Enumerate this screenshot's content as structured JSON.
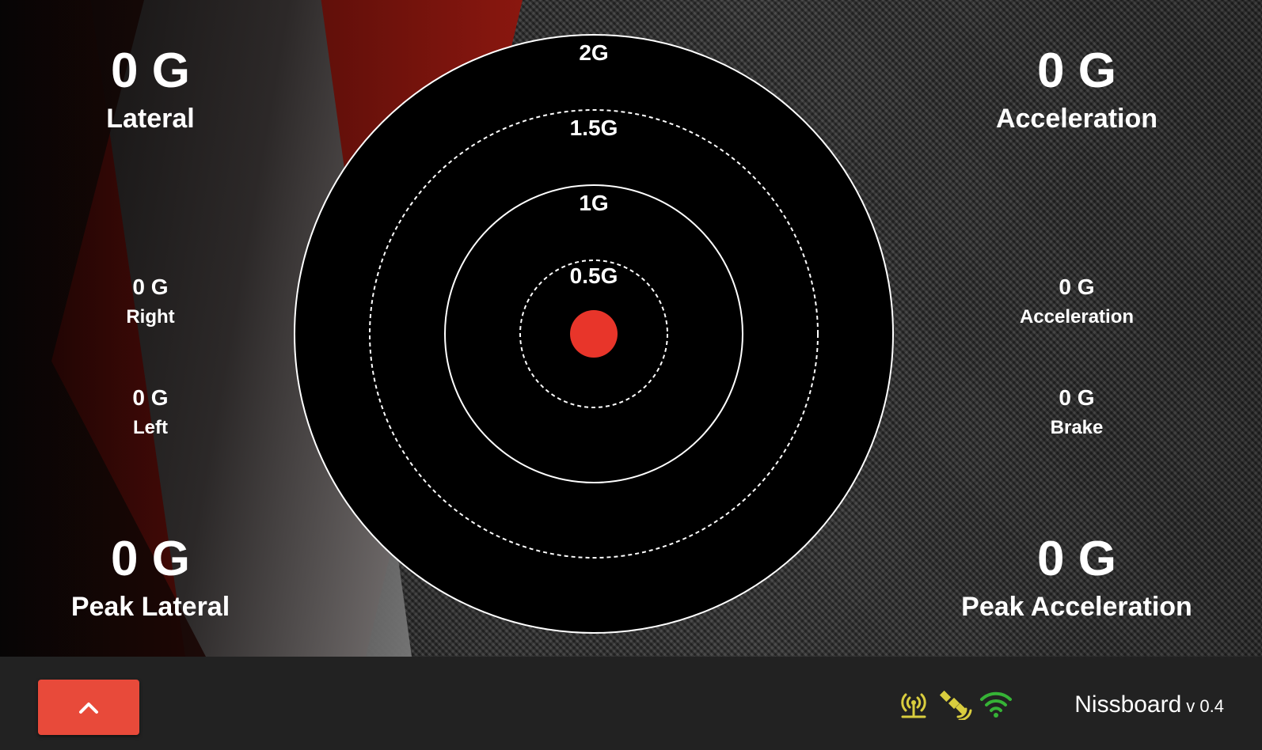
{
  "stats": {
    "lateral": {
      "value": "0 G",
      "label": "Lateral"
    },
    "acceleration": {
      "value": "0 G",
      "label": "Acceleration"
    },
    "right": {
      "value": "0 G",
      "label": "Right"
    },
    "left": {
      "value": "0 G",
      "label": "Left"
    },
    "accel_small": {
      "value": "0 G",
      "label": "Acceleration"
    },
    "brake": {
      "value": "0 G",
      "label": "Brake"
    },
    "peak_lateral": {
      "value": "0 G",
      "label": "Peak Lateral"
    },
    "peak_acceleration": {
      "value": "0 G",
      "label": "Peak Acceleration"
    }
  },
  "gauge": {
    "rings": [
      "2G",
      "1.5G",
      "1G",
      "0.5G"
    ],
    "ring_values": [
      2,
      1.5,
      1,
      0.5
    ],
    "lateral_g": 0,
    "longitudinal_g": 0,
    "dot_color": "#e8352a"
  },
  "footer": {
    "up_button_icon": "chevron-up-icon",
    "status_icons": [
      "antenna-icon",
      "satellite-icon",
      "wifi-icon"
    ],
    "status_colors": {
      "antenna": "#d9cd3e",
      "satellite": "#d9cd3e",
      "wifi": "#36b336"
    },
    "brand": "Nissboard",
    "version": "v 0.4"
  },
  "colors": {
    "accent": "#e84a3a",
    "footer_bg": "#222222"
  }
}
